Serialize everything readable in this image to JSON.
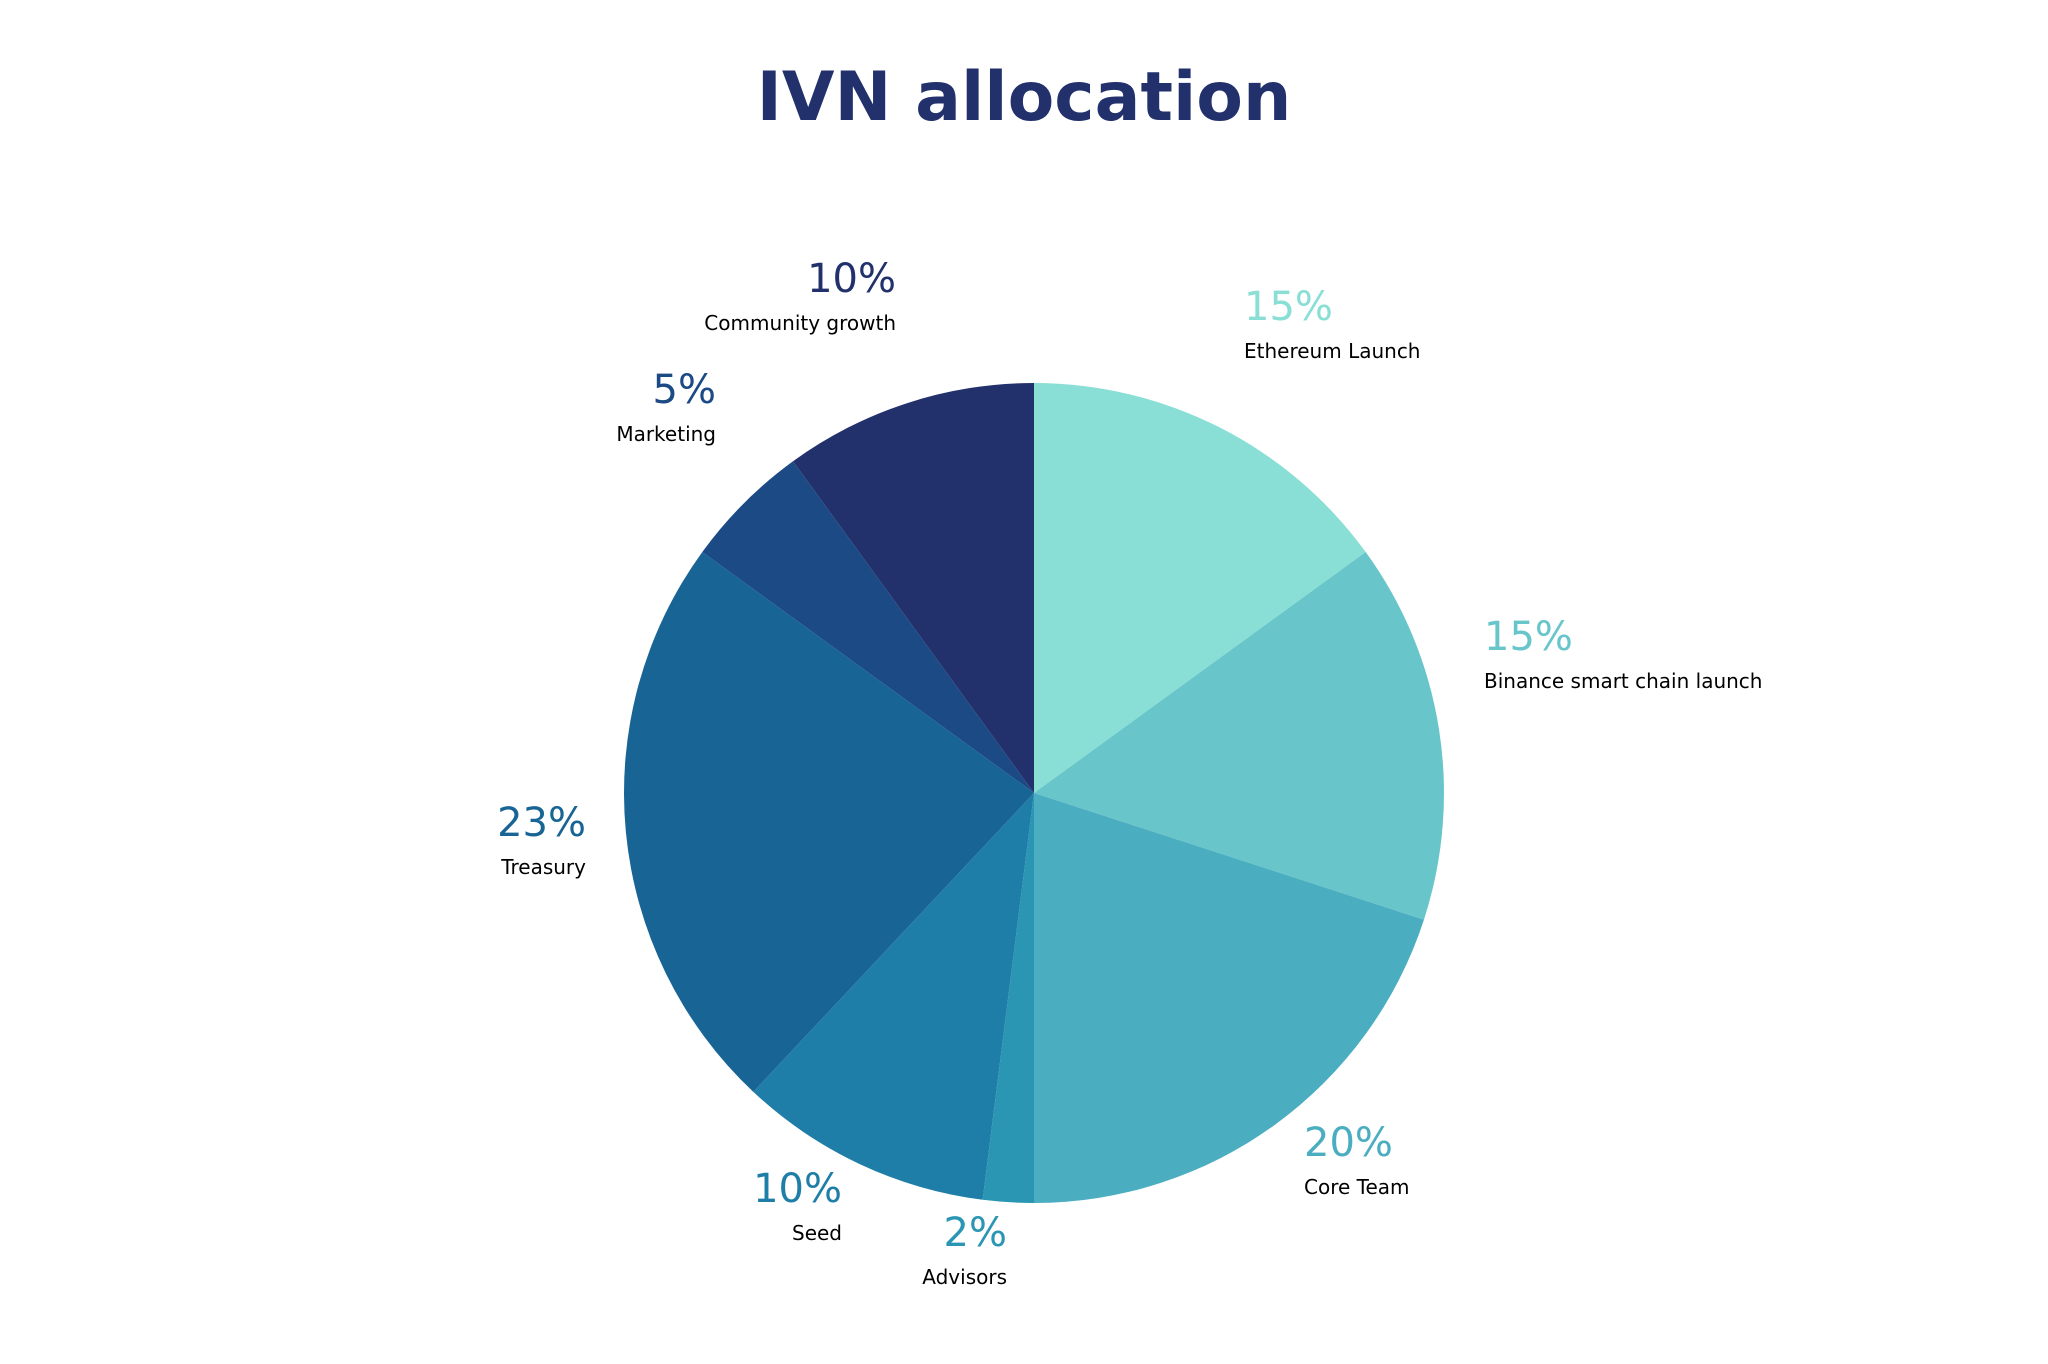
{
  "chart_data": {
    "type": "pie",
    "title": "IVN allocation",
    "slices": [
      {
        "label": "Ethereum Launch",
        "value": 15,
        "value_text": "15%",
        "color": "#89dfd5",
        "label_color": "#89dfd5"
      },
      {
        "label": "Binance smart chain launch",
        "value": 15,
        "value_text": "15%",
        "color": "#68c6ca",
        "label_color": "#68c6ca"
      },
      {
        "label": "Core Team",
        "value": 20,
        "value_text": "20%",
        "color": "#4aadc0",
        "label_color": "#4aadc0"
      },
      {
        "label": "Advisors",
        "value": 2,
        "value_text": "2%",
        "color": "#2a96b3",
        "label_color": "#2a96b3"
      },
      {
        "label": "Seed",
        "value": 10,
        "value_text": "10%",
        "color": "#1f7ea8",
        "label_color": "#1f7ea8"
      },
      {
        "label": "Treasury",
        "value": 23,
        "value_text": "23%",
        "color": "#186595",
        "label_color": "#186595"
      },
      {
        "label": "Marketing",
        "value": 5,
        "value_text": "5%",
        "color": "#1c4a85",
        "label_color": "#1c4a85"
      },
      {
        "label": "Community growth",
        "value": 10,
        "value_text": "10%",
        "color": "#22316c",
        "label_color": "#22316c"
      }
    ],
    "title_color": "#22316c",
    "legend": "none"
  }
}
